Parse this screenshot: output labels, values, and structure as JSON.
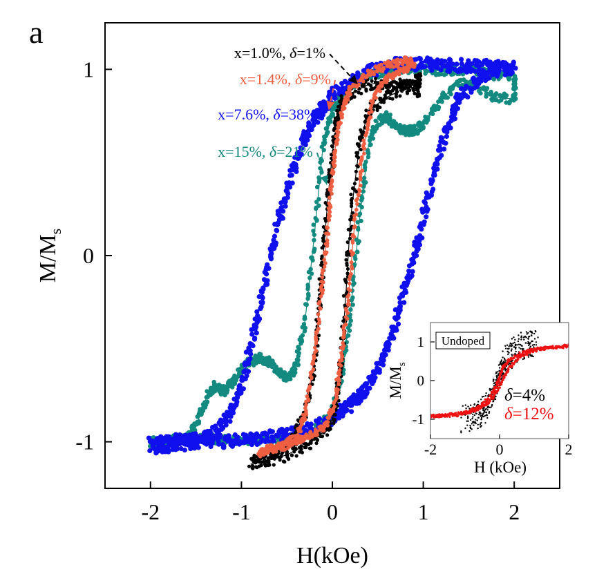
{
  "panel_label": "a",
  "chart_data": [
    {
      "type": "scatter",
      "title": "",
      "xlabel": "H(kOe)",
      "ylabel_main": "M/M",
      "ylabel_sub": "s",
      "xlim": [
        -2.5,
        2.5
      ],
      "ylim": [
        -1.25,
        1.25
      ],
      "xticks": [
        -2,
        -1,
        0,
        1,
        2
      ],
      "yticks": [
        -1,
        0,
        1
      ],
      "xtick_labels": [
        "-2",
        "-1",
        "0",
        "1",
        "2"
      ],
      "ytick_labels": [
        "-1",
        "0",
        "1"
      ],
      "grid": false,
      "legend_placement": "upper-left (arrow annotations)",
      "series": [
        {
          "name": "x=15%, δ=21%",
          "label_prefix": "x=15%, ",
          "label_delta": "δ",
          "label_suffix": "=21%",
          "color": "#138a80",
          "marker_line": true,
          "points": [
            [
              -2.0,
              -1.0
            ],
            [
              -1.8,
              -0.99
            ],
            [
              -1.6,
              -0.97
            ],
            [
              -1.5,
              -0.92
            ],
            [
              -1.4,
              -0.78
            ],
            [
              -1.3,
              -0.7
            ],
            [
              -1.2,
              -0.73
            ],
            [
              -1.1,
              -0.68
            ],
            [
              -1.0,
              -0.61
            ],
            [
              -0.9,
              -0.57
            ],
            [
              -0.8,
              -0.55
            ],
            [
              -0.7,
              -0.57
            ],
            [
              -0.6,
              -0.62
            ],
            [
              -0.5,
              -0.66
            ],
            [
              -0.4,
              -0.6
            ],
            [
              -0.3,
              -0.35
            ],
            [
              -0.2,
              0.1
            ],
            [
              -0.1,
              0.6
            ],
            [
              0.0,
              0.78
            ],
            [
              0.1,
              0.85
            ],
            [
              0.2,
              0.92
            ],
            [
              0.4,
              0.97
            ],
            [
              0.6,
              0.99
            ],
            [
              0.8,
              1.0
            ],
            [
              1.0,
              1.0
            ],
            [
              1.2,
              0.99
            ],
            [
              1.4,
              1.0
            ],
            [
              1.6,
              0.99
            ],
            [
              1.8,
              0.97
            ],
            [
              2.0,
              0.97
            ],
            [
              2.0,
              0.84
            ],
            [
              1.8,
              0.85
            ],
            [
              1.6,
              0.9
            ],
            [
              1.4,
              0.93
            ],
            [
              1.2,
              0.84
            ],
            [
              1.0,
              0.71
            ],
            [
              0.9,
              0.67
            ],
            [
              0.8,
              0.67
            ],
            [
              0.7,
              0.69
            ],
            [
              0.6,
              0.75
            ],
            [
              0.5,
              0.72
            ],
            [
              0.4,
              0.6
            ],
            [
              0.3,
              0.2
            ],
            [
              0.2,
              -0.3
            ],
            [
              0.1,
              -0.65
            ],
            [
              0.0,
              -0.85
            ],
            [
              -0.2,
              -0.94
            ],
            [
              -0.4,
              -0.98
            ],
            [
              -0.6,
              -0.99
            ],
            [
              -0.8,
              -0.99
            ],
            [
              -1.0,
              -0.99
            ],
            [
              -1.2,
              -0.99
            ],
            [
              -1.4,
              -0.98
            ],
            [
              -1.6,
              -0.99
            ],
            [
              -1.8,
              -1.0
            ],
            [
              -2.0,
              -1.0
            ]
          ]
        },
        {
          "name": "x=7.6%, δ=38%",
          "label_prefix": "x=7.6%, ",
          "label_delta": "δ",
          "label_suffix": "=38%",
          "color": "#1010ee",
          "marker_line": false,
          "points": [
            [
              -2.0,
              -1.01
            ],
            [
              -1.8,
              -1.0
            ],
            [
              -1.6,
              -0.99
            ],
            [
              -1.4,
              -0.98
            ],
            [
              -1.3,
              -0.95
            ],
            [
              -1.2,
              -0.9
            ],
            [
              -1.1,
              -0.82
            ],
            [
              -1.0,
              -0.7
            ],
            [
              -0.9,
              -0.5
            ],
            [
              -0.8,
              -0.28
            ],
            [
              -0.7,
              -0.05
            ],
            [
              -0.6,
              0.17
            ],
            [
              -0.5,
              0.35
            ],
            [
              -0.4,
              0.5
            ],
            [
              -0.3,
              0.63
            ],
            [
              -0.2,
              0.73
            ],
            [
              -0.1,
              0.8
            ],
            [
              0.0,
              0.86
            ],
            [
              0.2,
              0.94
            ],
            [
              0.4,
              0.99
            ],
            [
              0.6,
              1.02
            ],
            [
              0.8,
              1.03
            ],
            [
              1.0,
              1.03
            ],
            [
              1.2,
              1.02
            ],
            [
              1.4,
              1.02
            ],
            [
              1.6,
              1.02
            ],
            [
              1.8,
              1.01
            ],
            [
              2.0,
              1.01
            ],
            [
              1.8,
              1.0
            ],
            [
              1.6,
              0.95
            ],
            [
              1.4,
              0.85
            ],
            [
              1.3,
              0.74
            ],
            [
              1.2,
              0.58
            ],
            [
              1.1,
              0.4
            ],
            [
              1.0,
              0.2
            ],
            [
              0.9,
              0.0
            ],
            [
              0.8,
              -0.18
            ],
            [
              0.7,
              -0.35
            ],
            [
              0.6,
              -0.5
            ],
            [
              0.5,
              -0.62
            ],
            [
              0.4,
              -0.7
            ],
            [
              0.3,
              -0.76
            ],
            [
              0.2,
              -0.8
            ],
            [
              0.1,
              -0.83
            ],
            [
              0.0,
              -0.87
            ],
            [
              -0.2,
              -0.92
            ],
            [
              -0.4,
              -0.95
            ],
            [
              -0.6,
              -0.97
            ],
            [
              -0.8,
              -0.98
            ],
            [
              -1.0,
              -0.99
            ],
            [
              -1.2,
              -1.0
            ],
            [
              -1.4,
              -1.0
            ],
            [
              -1.6,
              -1.01
            ],
            [
              -1.8,
              -1.02
            ],
            [
              -2.0,
              -1.03
            ]
          ]
        },
        {
          "name": "x=1.0%, δ=1%",
          "label_prefix": "x=1.0%, ",
          "label_delta": "δ",
          "label_suffix": "=1%",
          "color": "#000000",
          "marker_line": true,
          "points": [
            [
              -0.9,
              -1.1
            ],
            [
              -0.7,
              -1.08
            ],
            [
              -0.5,
              -1.02
            ],
            [
              -0.3,
              -0.85
            ],
            [
              -0.2,
              -0.6
            ],
            [
              -0.15,
              -0.3
            ],
            [
              -0.1,
              0.0
            ],
            [
              -0.05,
              0.3
            ],
            [
              0.0,
              0.55
            ],
            [
              0.05,
              0.72
            ],
            [
              0.1,
              0.82
            ],
            [
              0.2,
              0.87
            ],
            [
              0.4,
              0.92
            ],
            [
              0.6,
              0.93
            ],
            [
              0.8,
              0.92
            ],
            [
              0.95,
              0.88
            ],
            [
              0.95,
              0.95
            ],
            [
              0.8,
              0.9
            ],
            [
              0.6,
              0.85
            ],
            [
              0.4,
              0.78
            ],
            [
              0.3,
              0.6
            ],
            [
              0.2,
              0.2
            ],
            [
              0.15,
              -0.2
            ],
            [
              0.1,
              -0.55
            ],
            [
              0.05,
              -0.75
            ],
            [
              0.0,
              -0.88
            ],
            [
              -0.1,
              -0.95
            ],
            [
              -0.3,
              -1.02
            ],
            [
              -0.5,
              -1.07
            ],
            [
              -0.7,
              -1.1
            ],
            [
              -0.9,
              -1.12
            ]
          ]
        },
        {
          "name": "x=1.4%, δ=9%",
          "label_prefix": "x=1.4%, ",
          "label_delta": "δ",
          "label_suffix": "=9%",
          "color": "#ee5e40",
          "marker_line": true,
          "points": [
            [
              -0.8,
              -1.05
            ],
            [
              -0.6,
              -1.03
            ],
            [
              -0.4,
              -0.98
            ],
            [
              -0.3,
              -0.85
            ],
            [
              -0.2,
              -0.55
            ],
            [
              -0.12,
              -0.2
            ],
            [
              -0.05,
              0.15
            ],
            [
              0.0,
              0.45
            ],
            [
              0.05,
              0.65
            ],
            [
              0.12,
              0.8
            ],
            [
              0.2,
              0.9
            ],
            [
              0.4,
              0.98
            ],
            [
              0.6,
              1.02
            ],
            [
              0.8,
              1.05
            ],
            [
              0.9,
              1.03
            ],
            [
              0.8,
              1.0
            ],
            [
              0.6,
              0.95
            ],
            [
              0.45,
              0.85
            ],
            [
              0.35,
              0.6
            ],
            [
              0.25,
              0.2
            ],
            [
              0.18,
              -0.2
            ],
            [
              0.1,
              -0.55
            ],
            [
              0.02,
              -0.8
            ],
            [
              -0.1,
              -0.93
            ],
            [
              -0.3,
              -0.98
            ],
            [
              -0.5,
              -1.02
            ],
            [
              -0.7,
              -1.04
            ],
            [
              -0.8,
              -1.06
            ]
          ]
        }
      ],
      "annotations": [
        {
          "series": 2,
          "text_x": -1.08,
          "text_y": 1.06,
          "arrow_to": [
            0.28,
            0.92
          ]
        },
        {
          "series": 3,
          "text_x": -1.02,
          "text_y": 0.92,
          "arrow_to": [
            -0.04,
            0.78
          ]
        },
        {
          "series": 1,
          "text_x": -1.26,
          "text_y": 0.73,
          "arrow_to": [
            -0.36,
            0.63
          ]
        },
        {
          "series": 0,
          "text_x": -1.26,
          "text_y": 0.53,
          "arrow_to": [
            -0.06,
            0.38
          ]
        }
      ]
    },
    {
      "type": "scatter",
      "title": "Undoped",
      "xlabel": "H (kOe)",
      "ylabel_main": "M/M",
      "ylabel_sub": "s",
      "xlim": [
        -2.0,
        2.0
      ],
      "ylim": [
        -1.5,
        1.5
      ],
      "xticks": [
        -2,
        0,
        2
      ],
      "yticks": [
        -1,
        0,
        1
      ],
      "xtick_labels": [
        "-2",
        "0",
        "2"
      ],
      "ytick_labels": [
        "-1",
        "0",
        "1"
      ],
      "grid": false,
      "series": [
        {
          "name": "δ=4%",
          "label_delta": "δ",
          "label_suffix": "=4%",
          "color": "#000000",
          "points": [
            [
              -1.0,
              -1.0
            ],
            [
              -0.8,
              -0.95
            ],
            [
              -0.6,
              -0.9
            ],
            [
              -0.45,
              -0.75
            ],
            [
              -0.3,
              -0.55
            ],
            [
              -0.2,
              -0.35
            ],
            [
              -0.1,
              -0.1
            ],
            [
              0.0,
              0.15
            ],
            [
              0.1,
              0.4
            ],
            [
              0.2,
              0.6
            ],
            [
              0.35,
              0.75
            ],
            [
              0.5,
              0.85
            ],
            [
              0.7,
              0.92
            ],
            [
              0.9,
              0.95
            ],
            [
              1.0,
              0.97
            ]
          ]
        },
        {
          "name": "δ=12%",
          "label_delta": "δ",
          "label_suffix": "=12%",
          "color": "#ee1111",
          "points": [
            [
              -2.0,
              -0.92
            ],
            [
              -1.6,
              -0.9
            ],
            [
              -1.2,
              -0.86
            ],
            [
              -0.9,
              -0.8
            ],
            [
              -0.6,
              -0.68
            ],
            [
              -0.3,
              -0.42
            ],
            [
              -0.1,
              -0.15
            ],
            [
              0.0,
              0.1
            ],
            [
              0.1,
              0.35
            ],
            [
              0.3,
              0.55
            ],
            [
              0.6,
              0.7
            ],
            [
              0.9,
              0.78
            ],
            [
              1.2,
              0.83
            ],
            [
              1.6,
              0.87
            ],
            [
              2.0,
              0.9
            ],
            [
              2.2,
              0.88
            ],
            [
              1.6,
              0.86
            ],
            [
              1.2,
              0.82
            ],
            [
              0.9,
              0.75
            ],
            [
              0.6,
              0.62
            ],
            [
              0.3,
              0.35
            ],
            [
              0.1,
              0.05
            ],
            [
              -0.1,
              -0.3
            ],
            [
              -0.3,
              -0.55
            ],
            [
              -0.6,
              -0.72
            ],
            [
              -0.9,
              -0.82
            ],
            [
              -1.2,
              -0.88
            ],
            [
              -1.6,
              -0.91
            ],
            [
              -2.0,
              -0.93
            ]
          ]
        }
      ]
    }
  ]
}
